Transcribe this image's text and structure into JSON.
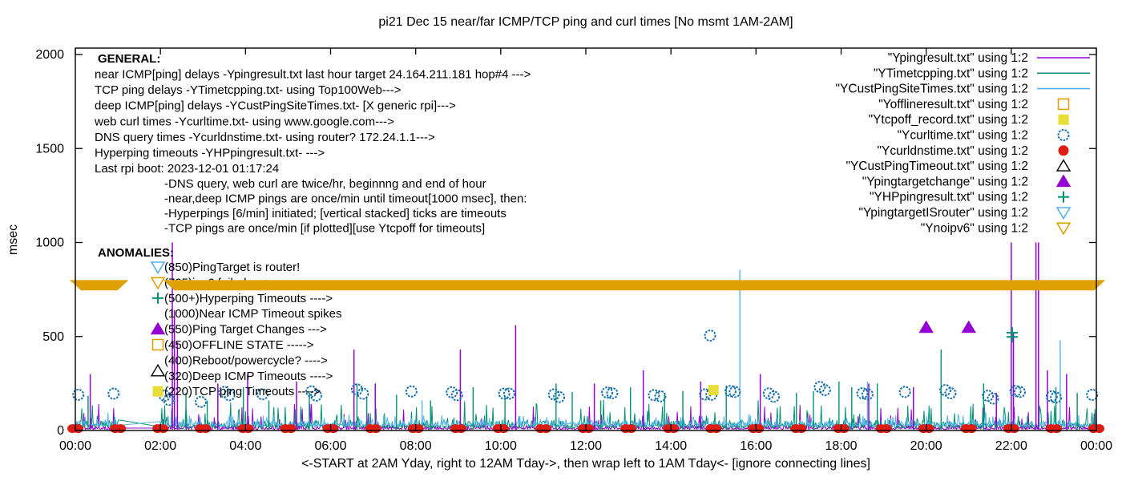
{
  "title": "pi21 Dec 15  near/far ICMP/TCP ping and curl times [No msmt 1AM-2AM]",
  "axes": {
    "y_label": "msec",
    "x_label": "<-START at 2AM Yday, right to 12AM Tday->, then wrap left to 1AM Tday<- [ignore connecting lines]",
    "y_ticks": [
      0,
      500,
      1000,
      1500,
      2000
    ],
    "x_tick_hours": [
      0,
      2,
      4,
      6,
      8,
      10,
      12,
      14,
      16,
      18,
      20,
      22,
      24
    ],
    "x_tick_labels": [
      "00:00",
      "02:00",
      "04:00",
      "06:00",
      "08:00",
      "10:00",
      "12:00",
      "14:00",
      "16:00",
      "18:00",
      "20:00",
      "22:00",
      "00:00"
    ]
  },
  "colors": {
    "purple": "#9400d3",
    "teal": "#009173",
    "sky": "#56b4e9",
    "orange": "#e0a106",
    "yellow": "#e8de3a",
    "blue": "#1470af",
    "red": "#dd1c14",
    "black": "#000000",
    "gold_band": "#dfa004"
  },
  "legend": [
    {
      "label": "\"Ypingresult.txt\" using 1:2",
      "type": "line",
      "color": "purple"
    },
    {
      "label": "\"YTimetcpping.txt\" using 1:2",
      "type": "line",
      "color": "teal"
    },
    {
      "label": "\"YCustPingSiteTimes.txt\" using 1:2",
      "type": "line",
      "color": "sky"
    },
    {
      "label": "\"Yofflineresult.txt\" using 1:2",
      "type": "square-open",
      "color": "orange"
    },
    {
      "label": "\"Ytcpoff_record.txt\" using 1:2",
      "type": "square-filled",
      "color": "yellow"
    },
    {
      "label": "\"Ycurltime.txt\" using 1:2",
      "type": "circle-open",
      "color": "blue"
    },
    {
      "label": "\"Ycurldnstime.txt\" using 1:2",
      "type": "circle-filled",
      "color": "red"
    },
    {
      "label": "\"YCustPingTimeout.txt\" using 1:2",
      "type": "tri-up-open",
      "color": "black"
    },
    {
      "label": "\"Ypingtargetchange\" using 1:2",
      "type": "tri-up-filled",
      "color": "purple"
    },
    {
      "label": "\"YHPpingresult.txt\" using 1:2",
      "type": "plus",
      "color": "teal"
    },
    {
      "label": "\"YpingtargetISrouter\" using 1:2",
      "type": "tri-down-open",
      "color": "sky"
    },
    {
      "label": "\"Ynoipv6\" using 1:2",
      "type": "tri-down-open",
      "color": "orange"
    }
  ],
  "annotations": {
    "general_heading": "GENERAL:",
    "general_lines": [
      "near ICMP[ping] delays -Ypingresult.txt last hour target 24.164.211.181 hop#4 --->",
      "TCP ping delays -YTimetcpping.txt- using Top100Web--->",
      "deep ICMP[ping] delays -YCustPingSiteTimes.txt- [X generic rpi]--->",
      "web curl times -Ycurltime.txt- using www.google.com--->",
      "DNS query times -Ycurldnstime.txt- using router? 172.24.1.1--->",
      "Hyperping timeouts -YHPpingresult.txt- --->",
      "Last rpi boot: 2023-12-01 01:17:24"
    ],
    "general_indent_lines": [
      "-DNS query, web curl are twice/hr, beginnng and end of hour",
      "-near,deep ICMP pings are once/min until timeout[1000 msec], then:",
      " -Hyperpings [6/min] initiated; [vertical stacked] ticks are timeouts",
      "-TCP pings are once/min [if plotted][use Ytcpoff for timeouts]"
    ],
    "anomalies_heading": "ANOMALIES:",
    "anomalies": [
      {
        "marker": "tri-down-open",
        "color": "sky",
        "text": "(850)PingTarget is router!"
      },
      {
        "marker": "tri-down-open",
        "color": "orange",
        "text": "(725)ipv6 failed ---->"
      },
      {
        "marker": "plus",
        "color": "teal",
        "text": "(500+)Hyperping Timeouts ---->"
      },
      {
        "marker": null,
        "color": null,
        "text": "(1000)Near ICMP Timeout spikes"
      },
      {
        "marker": "tri-up-filled",
        "color": "purple",
        "text": "(550)Ping Target Changes --->"
      },
      {
        "marker": "square-open",
        "color": "orange",
        "text": "(450)OFFLINE STATE ----->"
      },
      {
        "marker": null,
        "color": null,
        "text": "(400)Reboot/powercycle? ---->"
      },
      {
        "marker": "tri-up-open",
        "color": "black",
        "text": "(320)Deep ICMP Timeouts ---->"
      },
      {
        "marker": "square-filled",
        "color": "yellow",
        "text": "(220)TCP ping Timeouts ---->"
      }
    ]
  },
  "chart_data": {
    "type": "line",
    "x_range_hours": [
      0,
      24
    ],
    "y_range_msec": [
      0,
      2000
    ],
    "no_measurement_gap_hours": [
      1.03,
      1.97
    ],
    "noise_series": [
      {
        "name": "Ypingresult",
        "color": "purple",
        "base": 5,
        "jitter": 25,
        "burst_prob": 0.06,
        "burst_amp": 130
      },
      {
        "name": "YTimetcpping",
        "color": "teal",
        "base": 12,
        "jitter": 45,
        "burst_prob": 0.1,
        "burst_amp": 120
      },
      {
        "name": "YCustPingSiteTimes",
        "color": "sky",
        "base": 22,
        "jitter": 28,
        "burst_prob": 0.12,
        "burst_amp": 55
      }
    ],
    "ping_spikes": [
      [
        0.35,
        300
      ],
      [
        2.28,
        1000
      ],
      [
        2.33,
        640
      ],
      [
        2.4,
        470
      ],
      [
        3.35,
        250
      ],
      [
        4.05,
        300
      ],
      [
        5.2,
        260
      ],
      [
        6.55,
        430
      ],
      [
        7.05,
        250
      ],
      [
        9.05,
        430
      ],
      [
        10.35,
        560
      ],
      [
        12.2,
        250
      ],
      [
        13.35,
        320
      ],
      [
        14.7,
        260
      ],
      [
        16.1,
        300
      ],
      [
        18.65,
        250
      ],
      [
        19.7,
        230
      ],
      [
        21.65,
        200
      ],
      [
        22.0,
        1000
      ],
      [
        22.05,
        520
      ],
      [
        22.58,
        1000
      ],
      [
        22.64,
        1000
      ],
      [
        22.85,
        320
      ],
      [
        23.3,
        300
      ]
    ],
    "tcp_spikes": [
      [
        0.3,
        185
      ],
      [
        2.6,
        200
      ],
      [
        3.1,
        160
      ],
      [
        3.95,
        230
      ],
      [
        4.55,
        160
      ],
      [
        5.5,
        210
      ],
      [
        6.62,
        250
      ],
      [
        6.85,
        180
      ],
      [
        7.55,
        190
      ],
      [
        8.35,
        160
      ],
      [
        9.35,
        230
      ],
      [
        10.1,
        180
      ],
      [
        11.3,
        250
      ],
      [
        11.68,
        205
      ],
      [
        12.35,
        160
      ],
      [
        13.05,
        230
      ],
      [
        13.85,
        200
      ],
      [
        14.28,
        210
      ],
      [
        15.3,
        240
      ],
      [
        16.95,
        200
      ],
      [
        17.35,
        210
      ],
      [
        17.95,
        260
      ],
      [
        18.25,
        230
      ],
      [
        18.85,
        250
      ],
      [
        20.35,
        430
      ],
      [
        21.35,
        250
      ],
      [
        23.05,
        230
      ],
      [
        23.55,
        200
      ]
    ],
    "deep_spikes": [
      [
        8.15,
        160
      ],
      [
        15.62,
        855
      ],
      [
        18.62,
        260
      ],
      [
        22.05,
        500
      ],
      [
        23.15,
        480
      ]
    ],
    "curl_circles": [
      [
        0.07,
        190
      ],
      [
        0.9,
        196
      ],
      [
        2.1,
        185
      ],
      [
        2.2,
        163
      ],
      [
        2.95,
        152
      ],
      [
        3.5,
        205
      ],
      [
        3.62,
        188
      ],
      [
        4.4,
        193
      ],
      [
        5.55,
        208
      ],
      [
        5.66,
        186
      ],
      [
        6.62,
        218
      ],
      [
        6.76,
        196
      ],
      [
        7.9,
        208
      ],
      [
        8.85,
        203
      ],
      [
        8.97,
        188
      ],
      [
        10.08,
        196
      ],
      [
        10.2,
        196
      ],
      [
        11.25,
        192
      ],
      [
        11.37,
        178
      ],
      [
        12.5,
        202
      ],
      [
        12.62,
        198
      ],
      [
        13.6,
        188
      ],
      [
        13.75,
        182
      ],
      [
        14.8,
        192
      ],
      [
        14.92,
        505
      ],
      [
        14.95,
        190
      ],
      [
        15.4,
        210
      ],
      [
        15.5,
        205
      ],
      [
        16.3,
        197
      ],
      [
        16.42,
        180
      ],
      [
        17.5,
        232
      ],
      [
        17.62,
        215
      ],
      [
        18.5,
        198
      ],
      [
        18.62,
        192
      ],
      [
        19.5,
        205
      ],
      [
        20.45,
        215
      ],
      [
        20.57,
        198
      ],
      [
        21.45,
        185
      ],
      [
        21.57,
        170
      ],
      [
        22.1,
        210
      ],
      [
        22.2,
        205
      ],
      [
        22.95,
        182
      ],
      [
        23.05,
        175
      ],
      [
        23.9,
        190
      ]
    ],
    "dns_dot_hours": [
      0,
      1,
      2,
      3,
      4,
      5,
      6,
      7,
      8,
      9,
      10,
      11,
      12,
      13,
      14,
      15,
      16,
      17,
      18,
      19,
      20,
      21,
      22,
      23,
      24
    ],
    "dns_dot_value": 10,
    "hyperping_plus": [
      [
        22.02,
        498
      ],
      [
        22.02,
        520
      ]
    ],
    "ping_target_changes": [
      [
        20.0,
        548
      ],
      [
        21.0,
        548
      ]
    ],
    "tcp_timeout_squares": [
      [
        15.0,
        215
      ]
    ],
    "noipv6_band": {
      "segments": [
        [
          0.0,
          1.12
        ],
        [
          2.2,
          24.08
        ]
      ],
      "top_msec": 800,
      "bottom_msec": 745
    }
  }
}
